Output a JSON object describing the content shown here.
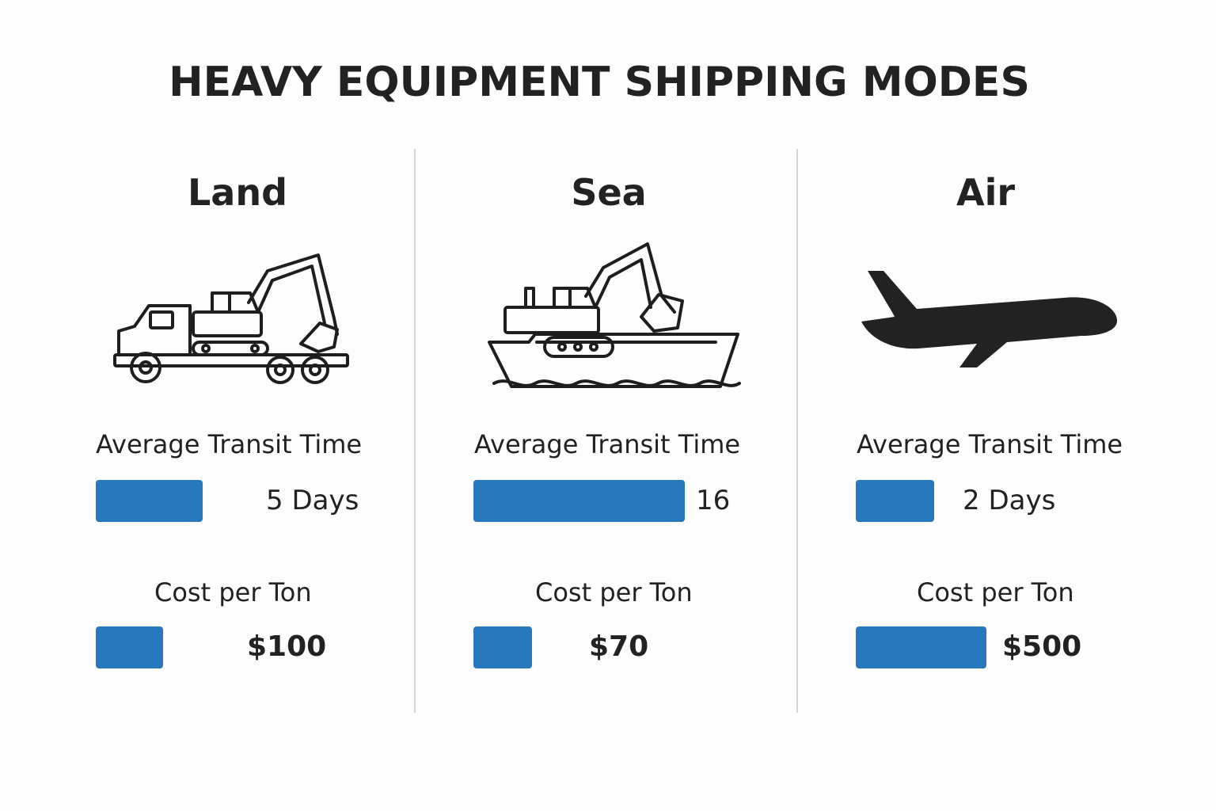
{
  "title": "HEAVY EQUIPMENT SHIPPING MODES",
  "colors": {
    "bar": "#2778bd",
    "text": "#222222",
    "divider": "#d6d6d6"
  },
  "modes": [
    {
      "name": "Land",
      "icon": "truck-with-excavator-icon",
      "transit_label": "Average Transit Time",
      "transit_text": "5 Days",
      "cost_label": "Cost per Ton",
      "cost_text": "$100"
    },
    {
      "name": "Sea",
      "icon": "ship-with-excavator-icon",
      "transit_label": "Average Transit Time",
      "transit_text": "16",
      "cost_label": "Cost per Ton",
      "cost_text": "$70"
    },
    {
      "name": "Air",
      "icon": "airplane-icon",
      "transit_label": "Average Transit Time",
      "transit_text": "2 Days",
      "cost_label": "Cost per Ton",
      "cost_text": "$500"
    }
  ],
  "chart_data": {
    "type": "bar",
    "categories": [
      "Land",
      "Sea",
      "Air"
    ],
    "series": [
      {
        "name": "Average Transit Time",
        "unit": "days",
        "values": [
          5,
          16,
          2
        ]
      },
      {
        "name": "Cost per Ton",
        "unit": "$",
        "values": [
          100,
          70,
          500
        ]
      }
    ],
    "title": "HEAVY EQUIPMENT SHIPPING MODES"
  }
}
